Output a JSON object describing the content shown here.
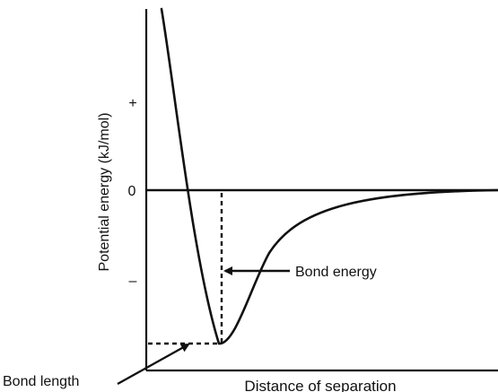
{
  "chart_data": {
    "type": "line",
    "title": "",
    "xlabel": "Distance of separation",
    "ylabel": "Potential energy (kJ/mol)",
    "y_tick_labels": [
      "+",
      "0",
      "–"
    ],
    "x_ticks": false,
    "grid": false,
    "legend": "none",
    "series": [
      {
        "values_description": "",
        "color": "#111111"
      }
    ],
    "annotations": {
      "bond_energy": "Bond energy",
      "bond_length": "Bond length"
    }
  },
  "colors": {
    "line": "#111111",
    "background": "#ffffff"
  }
}
